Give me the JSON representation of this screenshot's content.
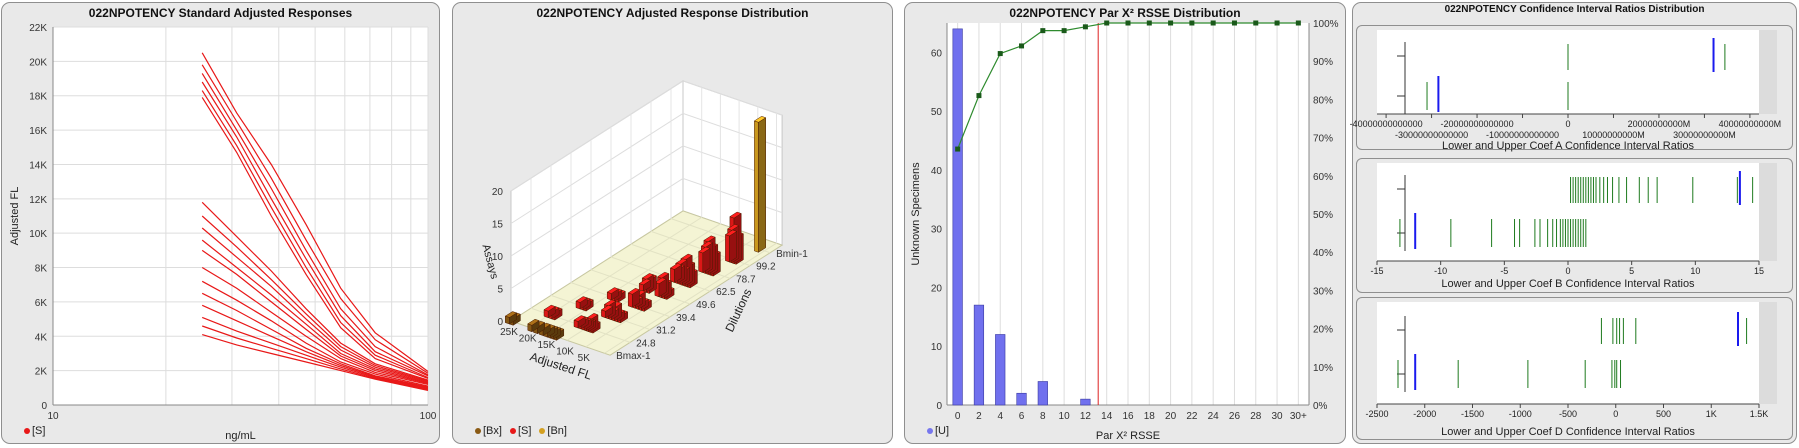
{
  "panels": {
    "p1": {
      "title": "022NPOTENCY Standard Adjusted Responses",
      "legend": [
        {
          "label": "[S]",
          "color": "#e81818"
        }
      ]
    },
    "p2": {
      "title": "022NPOTENCY Adjusted Response Distribution",
      "legend": [
        {
          "label": "[Bx]",
          "color": "#8a5a14"
        },
        {
          "label": "[S]",
          "color": "#e81818"
        },
        {
          "label": "[Bn]",
          "color": "#d4a020"
        }
      ]
    },
    "p3": {
      "title": "022NPOTENCY Par X² RSSE Distribution",
      "legend": [
        {
          "label": "[U]",
          "color": "#7777ee"
        }
      ]
    },
    "p4": {
      "title": "022NPOTENCY Confidence Interval Ratios Distribution"
    }
  },
  "chart_data": [
    {
      "id": "standard-responses",
      "type": "line",
      "title": "022NPOTENCY Standard Adjusted Responses",
      "xlabel": "ng/mL",
      "ylabel": "Adjusted FL",
      "x_scale": "log",
      "xlim": [
        10,
        100
      ],
      "ylim": [
        0,
        22000
      ],
      "x_ticks": [
        {
          "v": 10,
          "label": "10"
        },
        {
          "v": 100,
          "label": "100"
        }
      ],
      "y_ticks": [
        {
          "v": 0,
          "label": "0"
        },
        {
          "v": 2000,
          "label": "2K"
        },
        {
          "v": 4000,
          "label": "4K"
        },
        {
          "v": 6000,
          "label": "6K"
        },
        {
          "v": 8000,
          "label": "8K"
        },
        {
          "v": 10000,
          "label": "10K"
        },
        {
          "v": 12000,
          "label": "12K"
        },
        {
          "v": 14000,
          "label": "14K"
        },
        {
          "v": 16000,
          "label": "16K"
        },
        {
          "v": 18000,
          "label": "18K"
        },
        {
          "v": 20000,
          "label": "20K"
        },
        {
          "v": 22000,
          "label": "22K"
        }
      ],
      "color": "#e81818",
      "x": [
        25,
        30.9,
        38.2,
        47.3,
        58.5,
        72.3,
        100
      ],
      "series": [
        {
          "values": [
            20500,
            17000,
            14000,
            10500,
            6800,
            4200,
            1950
          ]
        },
        {
          "values": [
            19800,
            16500,
            13200,
            9600,
            6200,
            3800,
            1850
          ]
        },
        {
          "values": [
            19300,
            16000,
            12600,
            9000,
            5600,
            3400,
            1750
          ]
        },
        {
          "values": [
            18800,
            15600,
            12000,
            8500,
            5200,
            3100,
            1700
          ]
        },
        {
          "values": [
            18300,
            15100,
            11500,
            8000,
            4800,
            2900,
            1600
          ]
        },
        {
          "values": [
            17900,
            14700,
            11000,
            7600,
            4500,
            2700,
            1550
          ]
        },
        {
          "values": [
            11800,
            9800,
            7800,
            5600,
            3600,
            2400,
            1450
          ]
        },
        {
          "values": [
            11000,
            9200,
            7300,
            5300,
            3400,
            2300,
            1400
          ]
        },
        {
          "values": [
            10300,
            8600,
            6900,
            5000,
            3200,
            2200,
            1350
          ]
        },
        {
          "values": [
            9600,
            8000,
            6400,
            4700,
            3000,
            2100,
            1300
          ]
        },
        {
          "values": [
            9000,
            7600,
            6000,
            4400,
            2850,
            2000,
            1250
          ]
        },
        {
          "values": [
            8000,
            6800,
            5400,
            4000,
            2700,
            1900,
            1200
          ]
        },
        {
          "values": [
            7200,
            6100,
            4900,
            3600,
            2500,
            1800,
            1100
          ]
        },
        {
          "values": [
            6500,
            5500,
            4400,
            3300,
            2400,
            1700,
            1050
          ]
        },
        {
          "values": [
            5800,
            4900,
            4000,
            3100,
            2300,
            1650,
            1000
          ]
        },
        {
          "values": [
            5100,
            4300,
            3600,
            2900,
            2200,
            1600,
            950
          ]
        },
        {
          "values": [
            4600,
            3900,
            3300,
            2700,
            2100,
            1550,
            900
          ]
        },
        {
          "values": [
            4100,
            3500,
            3000,
            2500,
            2000,
            1500,
            850
          ]
        }
      ]
    },
    {
      "id": "response-distribution",
      "type": "bar",
      "title": "022NPOTENCY Adjusted Response Distribution",
      "xlabel": "Adjusted FL",
      "ylabel": "Dilutions",
      "zlabel": "Assays",
      "x_ticks": [
        "25K",
        "20K",
        "15K",
        "10K",
        "5K"
      ],
      "y_ticks": [
        "Bmax-1",
        "24.8",
        "31.2",
        "39.4",
        "49.6",
        "62.5",
        "78.7",
        "99.2",
        "Bmin-1"
      ],
      "z_ticks": [
        "0",
        "5",
        "10",
        "15",
        "20"
      ],
      "zlim": [
        0,
        20
      ],
      "bars": [
        {
          "fl": 25000,
          "dil": 0,
          "n": 1,
          "series": "Bx"
        },
        {
          "fl": 24000,
          "dil": 0,
          "n": 1,
          "series": "Bx"
        },
        {
          "fl": 19000,
          "dil": 0,
          "n": 1,
          "series": "Bx"
        },
        {
          "fl": 17500,
          "dil": 0,
          "n": 1,
          "series": "Bx"
        },
        {
          "fl": 16000,
          "dil": 0,
          "n": 1,
          "series": "Bx"
        },
        {
          "fl": 14800,
          "dil": 0,
          "n": 1,
          "series": "Bx"
        },
        {
          "fl": 14000,
          "dil": 0,
          "n": 1,
          "series": "Bx"
        },
        {
          "fl": 13200,
          "dil": 0,
          "n": 1,
          "series": "Bx"
        },
        {
          "fl": 12400,
          "dil": 0,
          "n": 1,
          "series": "Bx"
        },
        {
          "fl": 20000,
          "dil": 1,
          "n": 1,
          "series": "S"
        },
        {
          "fl": 19000,
          "dil": 1,
          "n": 1,
          "series": "S"
        },
        {
          "fl": 18200,
          "dil": 1,
          "n": 1,
          "series": "S"
        },
        {
          "fl": 12000,
          "dil": 1,
          "n": 1,
          "series": "S"
        },
        {
          "fl": 11200,
          "dil": 1,
          "n": 1,
          "series": "S"
        },
        {
          "fl": 10400,
          "dil": 1,
          "n": 1,
          "series": "S"
        },
        {
          "fl": 9800,
          "dil": 1,
          "n": 1,
          "series": "S"
        },
        {
          "fl": 9200,
          "dil": 1,
          "n": 1,
          "series": "S"
        },
        {
          "fl": 8600,
          "dil": 1,
          "n": 2,
          "series": "S"
        },
        {
          "fl": 8000,
          "dil": 1,
          "n": 1,
          "series": "S"
        },
        {
          "fl": 16800,
          "dil": 2,
          "n": 1,
          "series": "S"
        },
        {
          "fl": 16000,
          "dil": 2,
          "n": 1,
          "series": "S"
        },
        {
          "fl": 15200,
          "dil": 2,
          "n": 1,
          "series": "S"
        },
        {
          "fl": 10000,
          "dil": 2,
          "n": 1,
          "series": "S"
        },
        {
          "fl": 9200,
          "dil": 2,
          "n": 2,
          "series": "S"
        },
        {
          "fl": 8400,
          "dil": 2,
          "n": 1,
          "series": "S"
        },
        {
          "fl": 7600,
          "dil": 2,
          "n": 2,
          "series": "S"
        },
        {
          "fl": 6800,
          "dil": 2,
          "n": 1,
          "series": "S"
        },
        {
          "fl": 6000,
          "dil": 2,
          "n": 1,
          "series": "S"
        },
        {
          "fl": 13800,
          "dil": 3,
          "n": 1,
          "series": "S"
        },
        {
          "fl": 12900,
          "dil": 3,
          "n": 1,
          "series": "S"
        },
        {
          "fl": 12000,
          "dil": 3,
          "n": 1,
          "series": "S"
        },
        {
          "fl": 8200,
          "dil": 3,
          "n": 2,
          "series": "S"
        },
        {
          "fl": 7400,
          "dil": 3,
          "n": 1,
          "series": "S"
        },
        {
          "fl": 6600,
          "dil": 3,
          "n": 2,
          "series": "S"
        },
        {
          "fl": 5800,
          "dil": 3,
          "n": 1,
          "series": "S"
        },
        {
          "fl": 5000,
          "dil": 3,
          "n": 1,
          "series": "S"
        },
        {
          "fl": 10600,
          "dil": 4,
          "n": 1,
          "series": "S"
        },
        {
          "fl": 9800,
          "dil": 4,
          "n": 2,
          "series": "S"
        },
        {
          "fl": 9000,
          "dil": 4,
          "n": 2,
          "series": "S"
        },
        {
          "fl": 6400,
          "dil": 4,
          "n": 2,
          "series": "S"
        },
        {
          "fl": 5700,
          "dil": 4,
          "n": 3,
          "series": "S"
        },
        {
          "fl": 5000,
          "dil": 4,
          "n": 2,
          "series": "S"
        },
        {
          "fl": 4300,
          "dil": 4,
          "n": 1,
          "series": "S"
        },
        {
          "fl": 7600,
          "dil": 5,
          "n": 2,
          "series": "S"
        },
        {
          "fl": 6900,
          "dil": 5,
          "n": 2,
          "series": "S"
        },
        {
          "fl": 6200,
          "dil": 5,
          "n": 3,
          "series": "S"
        },
        {
          "fl": 5500,
          "dil": 5,
          "n": 2,
          "series": "S"
        },
        {
          "fl": 4800,
          "dil": 5,
          "n": 4,
          "series": "S"
        },
        {
          "fl": 4100,
          "dil": 5,
          "n": 3,
          "series": "S"
        },
        {
          "fl": 3400,
          "dil": 5,
          "n": 2,
          "series": "S"
        },
        {
          "fl": 5400,
          "dil": 6,
          "n": 3,
          "series": "S"
        },
        {
          "fl": 4700,
          "dil": 6,
          "n": 4,
          "series": "S"
        },
        {
          "fl": 4000,
          "dil": 6,
          "n": 5,
          "series": "S"
        },
        {
          "fl": 3300,
          "dil": 6,
          "n": 4,
          "series": "S"
        },
        {
          "fl": 2600,
          "dil": 6,
          "n": 3,
          "series": "S"
        },
        {
          "fl": 3600,
          "dil": 7,
          "n": 4,
          "series": "S"
        },
        {
          "fl": 3000,
          "dil": 7,
          "n": 5,
          "series": "S"
        },
        {
          "fl": 2400,
          "dil": 7,
          "n": 7,
          "series": "S"
        },
        {
          "fl": 1800,
          "dil": 7,
          "n": 4,
          "series": "S"
        },
        {
          "fl": 1200,
          "dil": 8,
          "n": 20,
          "series": "Bn"
        }
      ]
    },
    {
      "id": "rsse-distribution",
      "type": "bar",
      "title": "022NPOTENCY Par X² RSSE Distribution",
      "xlabel": "Par X² RSSE",
      "ylabel": "Unknown Specimens",
      "categories": [
        "0",
        "2",
        "4",
        "6",
        "8",
        "10",
        "12",
        "14",
        "16",
        "18",
        "20",
        "22",
        "24",
        "26",
        "28",
        "30",
        "30+"
      ],
      "values": [
        64,
        17,
        12,
        2,
        4,
        0,
        1,
        0,
        0,
        0,
        0,
        0,
        0,
        0,
        0,
        0,
        0
      ],
      "cumulative_percent": [
        67,
        81,
        92,
        94,
        98,
        98,
        99,
        100,
        100,
        100,
        100,
        100,
        100,
        100,
        100,
        100,
        100
      ],
      "ylim": [
        0,
        65
      ],
      "y_ticks": [
        0,
        10,
        20,
        30,
        40,
        50,
        60
      ],
      "y2lim": [
        0,
        100
      ],
      "y2_ticks": [
        "0%",
        "10%",
        "20%",
        "30%",
        "40%",
        "50%",
        "60%",
        "70%",
        "80%",
        "90%",
        "100%"
      ],
      "threshold": 13.2,
      "bar_color": "#7070ee",
      "line_color": "#2e8b2e",
      "threshold_color": "#dd2222"
    },
    {
      "id": "coef-a",
      "type": "scatter",
      "xlabel": "Lower and Upper Coef A Confidence Interval Ratios",
      "xlim": [
        -42000000000000,
        42000000000000
      ],
      "x_ticks_top": [
        {
          "v": -40000000000000,
          "label": "-40000000000000"
        },
        {
          "v": -20000000000000,
          "label": "-20000000000000"
        },
        {
          "v": 0,
          "label": "0"
        },
        {
          "v": 20000000000000,
          "label": "20000000000M"
        },
        {
          "v": 40000000000000,
          "label": "40000000000M"
        }
      ],
      "x_ticks_bottom": [
        {
          "v": -30000000000000,
          "label": "-30000000000000"
        },
        {
          "v": -10000000000000,
          "label": "-10000000000000"
        },
        {
          "v": 10000000000000,
          "label": "10000000000M"
        },
        {
          "v": 30000000000000,
          "label": "30000000000M"
        }
      ],
      "upper_values": [
        0,
        32000000000000,
        34500000000000
      ],
      "lower_values": [
        -31000000000000,
        -28500000000000,
        0
      ],
      "upper_blue": 32000000000000,
      "lower_blue": -28500000000000
    },
    {
      "id": "coef-b",
      "type": "scatter",
      "xlabel": "Lower and Upper Coef B Confidence Interval Ratios",
      "xlim": [
        -15,
        15
      ],
      "x_ticks": [
        {
          "v": -15,
          "label": "-15"
        },
        {
          "v": -10,
          "label": "-10"
        },
        {
          "v": -5,
          "label": "-5"
        },
        {
          "v": 0,
          "label": "0"
        },
        {
          "v": 5,
          "label": "5"
        },
        {
          "v": 10,
          "label": "10"
        },
        {
          "v": 15,
          "label": "15"
        }
      ],
      "upper_values": [
        0.2,
        0.4,
        0.6,
        0.8,
        1.0,
        1.2,
        1.4,
        1.6,
        1.8,
        2.0,
        2.2,
        2.5,
        2.8,
        3.1,
        3.5,
        4.0,
        4.6,
        5.6,
        6.3,
        7.0,
        9.8,
        13.3,
        14.5
      ],
      "lower_values": [
        -13.2,
        -12.0,
        -9.2,
        -6.0,
        -4.2,
        -3.8,
        -2.6,
        -2.2,
        -1.6,
        -1.2,
        -0.9,
        -0.6,
        -0.4,
        -0.2,
        0.0,
        0.2,
        0.4,
        0.6,
        0.8,
        1.0,
        1.2,
        1.4
      ],
      "upper_blue": 13.5,
      "lower_blue": -12.0
    },
    {
      "id": "coef-d",
      "type": "scatter",
      "xlabel": "Lower and Upper Coef D Confidence Interval Ratios",
      "xlim": [
        -2500,
        1500
      ],
      "x_ticks": [
        {
          "v": -2500,
          "label": "-2500"
        },
        {
          "v": -2000,
          "label": "-2000"
        },
        {
          "v": -1500,
          "label": "-1500"
        },
        {
          "v": -1000,
          "label": "-1000"
        },
        {
          "v": -500,
          "label": "-500"
        },
        {
          "v": 0,
          "label": "0"
        },
        {
          "v": 500,
          "label": "500"
        },
        {
          "v": 1000,
          "label": "1K"
        },
        {
          "v": 1500,
          "label": "1.5K"
        }
      ],
      "upper_values": [
        -150,
        -30,
        10,
        40,
        80,
        210,
        1370
      ],
      "lower_values": [
        -2280,
        -1650,
        -920,
        -320,
        -40,
        -10,
        10,
        50
      ],
      "upper_blue": 1280,
      "lower_blue": -2100
    }
  ]
}
